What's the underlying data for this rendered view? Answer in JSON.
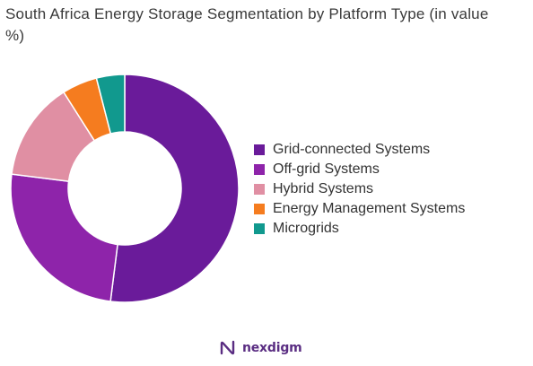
{
  "chart_data": {
    "type": "pie",
    "subtype": "donut",
    "title": "South Africa Energy Storage Segmentation by Platform Type (in value %)",
    "legend_position": "right",
    "slices": [
      {
        "label": "Grid-connected Systems",
        "value": 52,
        "color": "#6a1b9a"
      },
      {
        "label": "Off-grid Systems",
        "value": 25,
        "color": "#8e24aa"
      },
      {
        "label": "Hybrid Systems",
        "value": 14,
        "color": "#e08fa3"
      },
      {
        "label": "Energy Management Systems",
        "value": 5,
        "color": "#f57c1f"
      },
      {
        "label": "Microgrids",
        "value": 4,
        "color": "#11998e"
      }
    ]
  },
  "brand": {
    "name": "nexdigm",
    "logo_icon": "nexdigm-logo-icon"
  }
}
